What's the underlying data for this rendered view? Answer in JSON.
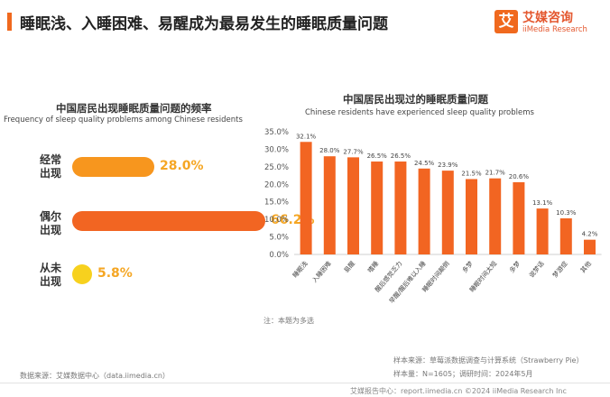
{
  "header": {
    "title": "睡眠浅、入睡困难、易醒成为最易发生的睡眠质量问题",
    "logo_mark": "艾",
    "logo_cn": "艾媒咨询",
    "logo_en": "iiMedia Research",
    "accent_color": "#f0691e"
  },
  "left_panel": {
    "title_cn": "中国居民出现睡眠质量问题的频率",
    "title_en": "Frequency of sleep quality problems among Chinese residents",
    "items": [
      {
        "label": "经常出现",
        "value": 28.0,
        "value_text": "28.0%"
      },
      {
        "label": "偶尔出现",
        "value": 66.2,
        "value_text": "66.2%"
      },
      {
        "label": "从未出现",
        "value": 5.8,
        "value_text": "5.8%"
      }
    ],
    "colors": [
      "#f7961e",
      "#f26522",
      "#f7d11e"
    ]
  },
  "chart_data": {
    "type": "bar",
    "title": "中国居民出现过的睡眠质量问题",
    "subtitle": "Chinese residents have experienced sleep quality problems",
    "categories": [
      "睡眠浅",
      "入睡困难",
      "易醒",
      "嗜睡",
      "醒后感觉乏力",
      "早醒/醒后难以入睡",
      "睡眠时间颠倒",
      "多梦",
      "睡眠时间太短",
      "多梦",
      "说梦话",
      "梦游症",
      "其他"
    ],
    "values": [
      32.1,
      28.0,
      27.7,
      26.5,
      26.5,
      24.5,
      23.9,
      21.5,
      21.7,
      20.6,
      13.1,
      10.3,
      4.2
    ],
    "value_labels": [
      "32.1%",
      "28.0%",
      "27.7%",
      "26.5%",
      "26.5%",
      "24.5%",
      "23.9%",
      "21.5%",
      "21.7%",
      "20.6%",
      "13.1%",
      "10.3%",
      "4.2%"
    ],
    "ylim": [
      0,
      35
    ],
    "y_ticks": [
      "0.0%",
      "5.0%",
      "10.0%",
      "15.0%",
      "20.0%",
      "25.0%",
      "30.0%",
      "35.0%"
    ],
    "bar_color": "#f26522",
    "grid": false,
    "legend": "none"
  },
  "notes": {
    "chart_note": "注：本题为多选",
    "source_left": "数据来源：艾媒数据中心（data.iimedia.cn）",
    "sample_source": "样本来源：草莓派数据调查与计算系统（Strawberry Pie）",
    "sample_info": "样本量：N=1605；调研时间：2024年5月"
  },
  "footer": {
    "text": "艾媒报告中心：report.iimedia.cn    ©2024  iiMedia Research Inc"
  }
}
